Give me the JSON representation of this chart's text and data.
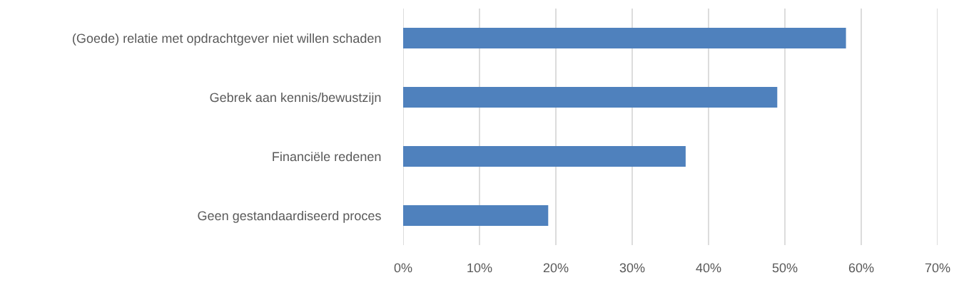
{
  "chart_data": {
    "type": "bar",
    "orientation": "horizontal",
    "categories": [
      "(Goede) relatie met opdrachtgever niet willen schaden",
      "Gebrek aan kennis/bewustzijn",
      "Financiële redenen",
      "Geen gestandaardiseerd proces"
    ],
    "values": [
      58,
      49,
      37,
      19
    ],
    "color": "#4f81bd",
    "xlim": [
      0,
      70
    ],
    "xticks": [
      {
        "value": 0,
        "label": "0%"
      },
      {
        "value": 10,
        "label": "10%"
      },
      {
        "value": 20,
        "label": "20%"
      },
      {
        "value": 30,
        "label": "30%"
      },
      {
        "value": 40,
        "label": "40%"
      },
      {
        "value": 50,
        "label": "50%"
      },
      {
        "value": 60,
        "label": "60%"
      },
      {
        "value": 70,
        "label": "70%"
      }
    ],
    "grid": "x",
    "legend": false
  }
}
